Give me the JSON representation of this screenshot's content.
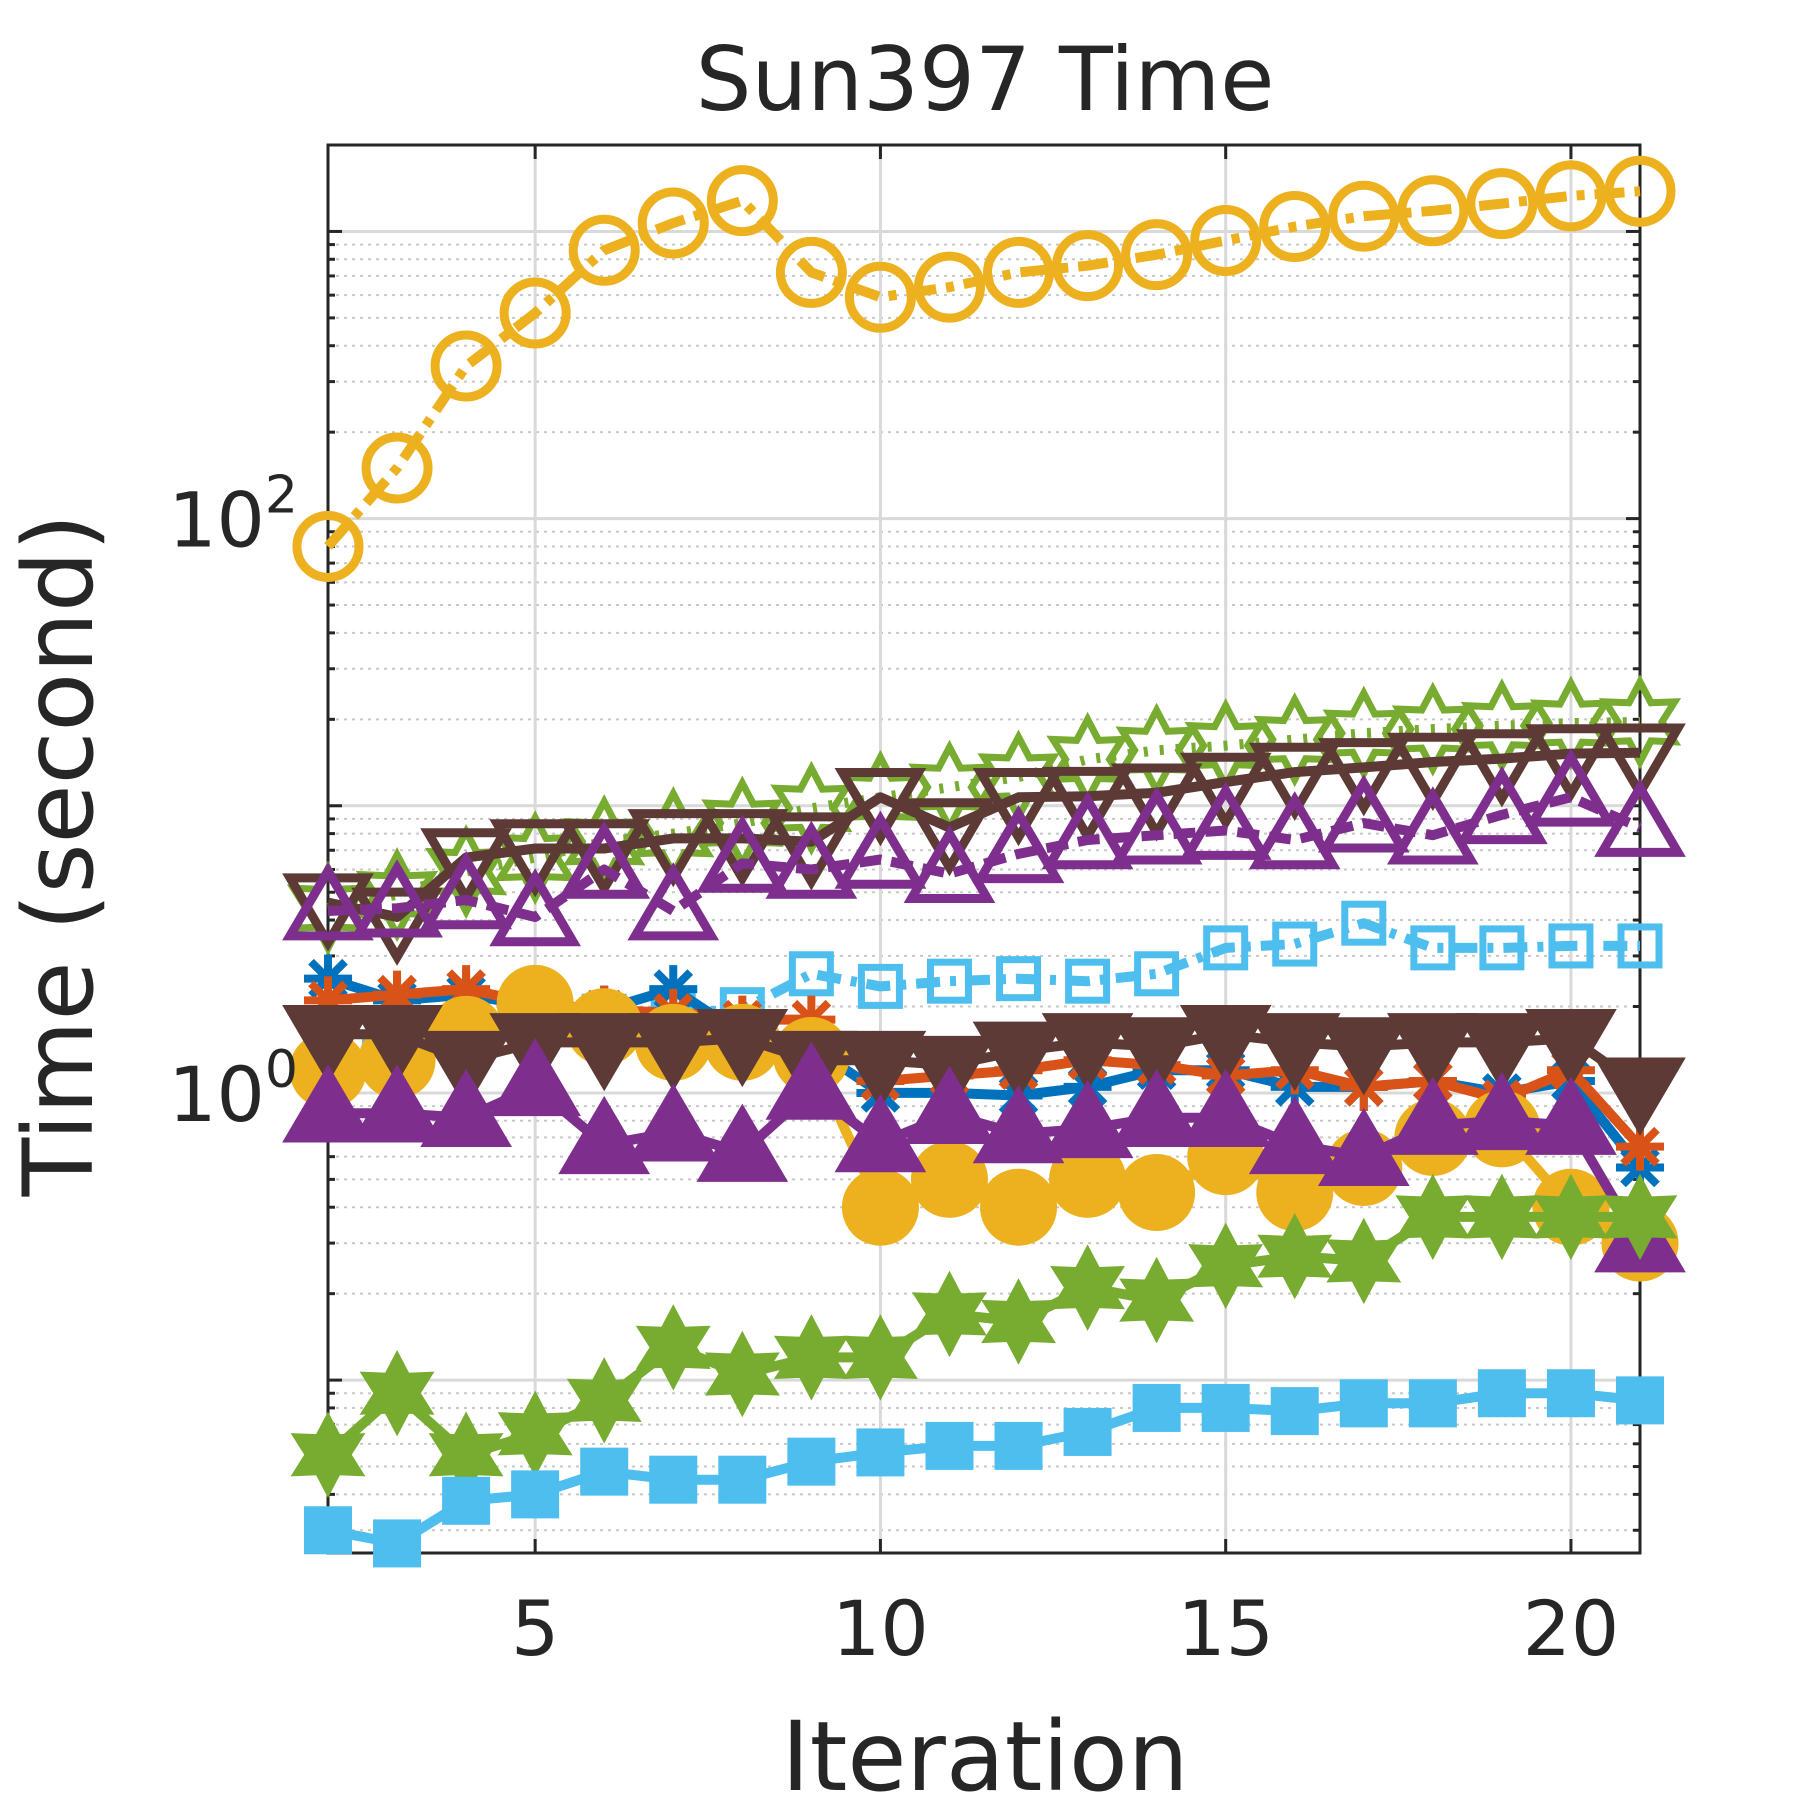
{
  "chart_data": {
    "type": "line",
    "title": "Sun397 Time",
    "xlabel": "Iteration",
    "ylabel": "Time (second)",
    "yscale": "log",
    "xlim": [
      2,
      21
    ],
    "ylim": [
      0.025,
      2000
    ],
    "grid": true,
    "x_ticks": [
      5,
      10,
      15,
      20
    ],
    "y_ticks": [
      {
        "value": 100,
        "base": "10",
        "exp": "2"
      },
      {
        "value": 1,
        "base": "10",
        "exp": "0"
      }
    ],
    "x": [
      2,
      3,
      4,
      5,
      6,
      7,
      8,
      9,
      10,
      11,
      12,
      13,
      14,
      15,
      16,
      17,
      18,
      19,
      20,
      21
    ],
    "series": [
      {
        "name": "yellow-open-circle-dashdot",
        "color": "#EDB120",
        "marker": "circle",
        "filled": false,
        "dash": "30,10,8,10",
        "values": [
          80,
          150,
          340,
          520,
          860,
          1070,
          1280,
          720,
          590,
          640,
          720,
          760,
          830,
          930,
          1040,
          1130,
          1180,
          1250,
          1330,
          1380
        ]
      },
      {
        "name": "green-open-hexagram-dotted",
        "color": "#77AC30",
        "marker": "hexagram",
        "filled": false,
        "dash": "4,12",
        "values": [
          4.4,
          4.9,
          5.9,
          6.6,
          7.5,
          8.0,
          8.7,
          9.8,
          10.7,
          11.6,
          12.6,
          14.5,
          15.6,
          16.2,
          17.0,
          17.9,
          18.5,
          19.0,
          19.4,
          19.6
        ]
      },
      {
        "name": "brown-open-triangle-down",
        "color": "#5D3A36",
        "marker": "triangle-down",
        "filled": false,
        "dash": "none",
        "values": [
          4.6,
          4.1,
          6.6,
          7.1,
          7.1,
          7.7,
          7.7,
          7.5,
          10.7,
          8.4,
          10.7,
          10.8,
          11.1,
          12.1,
          13.1,
          13.6,
          14.2,
          14.6,
          15.2,
          15.3
        ]
      },
      {
        "name": "purple-open-triangle-dashed",
        "color": "#7E2F8E",
        "marker": "triangle-up",
        "filled": false,
        "dash": "22,10",
        "values": [
          4.3,
          4.4,
          4.7,
          4.1,
          6.0,
          4.3,
          6.3,
          6.0,
          6.5,
          5.8,
          6.8,
          7.6,
          7.9,
          8.2,
          7.6,
          8.7,
          7.9,
          9.3,
          10.7,
          8.4
        ]
      },
      {
        "name": "lightblue-open-square-dashdot",
        "color": "#4DBEEE",
        "marker": "square",
        "filled": false,
        "dash": "24,10,6,10",
        "values": [
          1.5,
          1.5,
          1.6,
          1.75,
          1.85,
          1.9,
          1.95,
          2.6,
          2.35,
          2.45,
          2.5,
          2.45,
          2.6,
          3.2,
          3.3,
          3.9,
          3.2,
          3.2,
          3.25,
          3.25
        ]
      },
      {
        "name": "blue-asterisk",
        "color": "#0072BD",
        "marker": "asterisk",
        "filled": false,
        "dash": "none",
        "values": [
          2.5,
          2.1,
          2.2,
          2.0,
          1.95,
          2.3,
          1.6,
          1.45,
          1.0,
          1.0,
          0.98,
          1.05,
          1.2,
          1.2,
          1.05,
          1.05,
          1.1,
          1.0,
          1.1,
          0.55
        ]
      },
      {
        "name": "orange-asterisk",
        "color": "#D95319",
        "marker": "asterisk",
        "filled": false,
        "dash": "none",
        "values": [
          2.1,
          2.2,
          2.3,
          2.05,
          1.95,
          1.9,
          1.8,
          1.8,
          1.1,
          1.15,
          1.2,
          1.3,
          1.25,
          1.15,
          1.2,
          1.05,
          1.1,
          0.95,
          1.2,
          0.65
        ]
      },
      {
        "name": "yellow-filled-circle",
        "color": "#EDB120",
        "marker": "circle",
        "filled": true,
        "dash": "none",
        "values": [
          1.2,
          1.3,
          1.6,
          2.05,
          1.7,
          1.5,
          1.5,
          1.35,
          0.4,
          0.5,
          0.4,
          0.5,
          0.45,
          0.6,
          0.45,
          0.55,
          0.7,
          0.75,
          0.4,
          0.3
        ]
      },
      {
        "name": "brown-filled-triangle-down",
        "color": "#5D3A36",
        "marker": "triangle-down",
        "filled": true,
        "dash": "none",
        "values": [
          1.6,
          1.6,
          1.3,
          1.5,
          1.5,
          1.5,
          1.55,
          1.3,
          1.3,
          1.25,
          1.4,
          1.5,
          1.45,
          1.6,
          1.5,
          1.45,
          1.5,
          1.5,
          1.55,
          1.05
        ]
      },
      {
        "name": "purple-filled-triangle-up",
        "color": "#7E2F8E",
        "marker": "triangle-up",
        "filled": true,
        "dash": "none",
        "values": [
          0.85,
          0.85,
          0.82,
          1.05,
          0.66,
          0.73,
          0.62,
          1.02,
          0.67,
          0.84,
          0.72,
          0.75,
          0.82,
          0.82,
          0.66,
          0.6,
          0.77,
          0.8,
          0.77,
          0.3
        ]
      },
      {
        "name": "green-filled-hexagram",
        "color": "#77AC30",
        "marker": "hexagram",
        "filled": true,
        "dash": "none",
        "values": [
          0.055,
          0.09,
          0.055,
          0.065,
          0.085,
          0.13,
          0.105,
          0.12,
          0.12,
          0.17,
          0.16,
          0.21,
          0.19,
          0.25,
          0.27,
          0.26,
          0.37,
          0.37,
          0.37,
          0.37
        ]
      },
      {
        "name": "lightblue-filled-square",
        "color": "#4DBEEE",
        "marker": "square",
        "filled": true,
        "dash": "none",
        "values": [
          0.03,
          0.027,
          0.038,
          0.04,
          0.048,
          0.045,
          0.045,
          0.052,
          0.056,
          0.059,
          0.059,
          0.066,
          0.08,
          0.08,
          0.078,
          0.083,
          0.083,
          0.09,
          0.09,
          0.085
        ]
      }
    ]
  }
}
